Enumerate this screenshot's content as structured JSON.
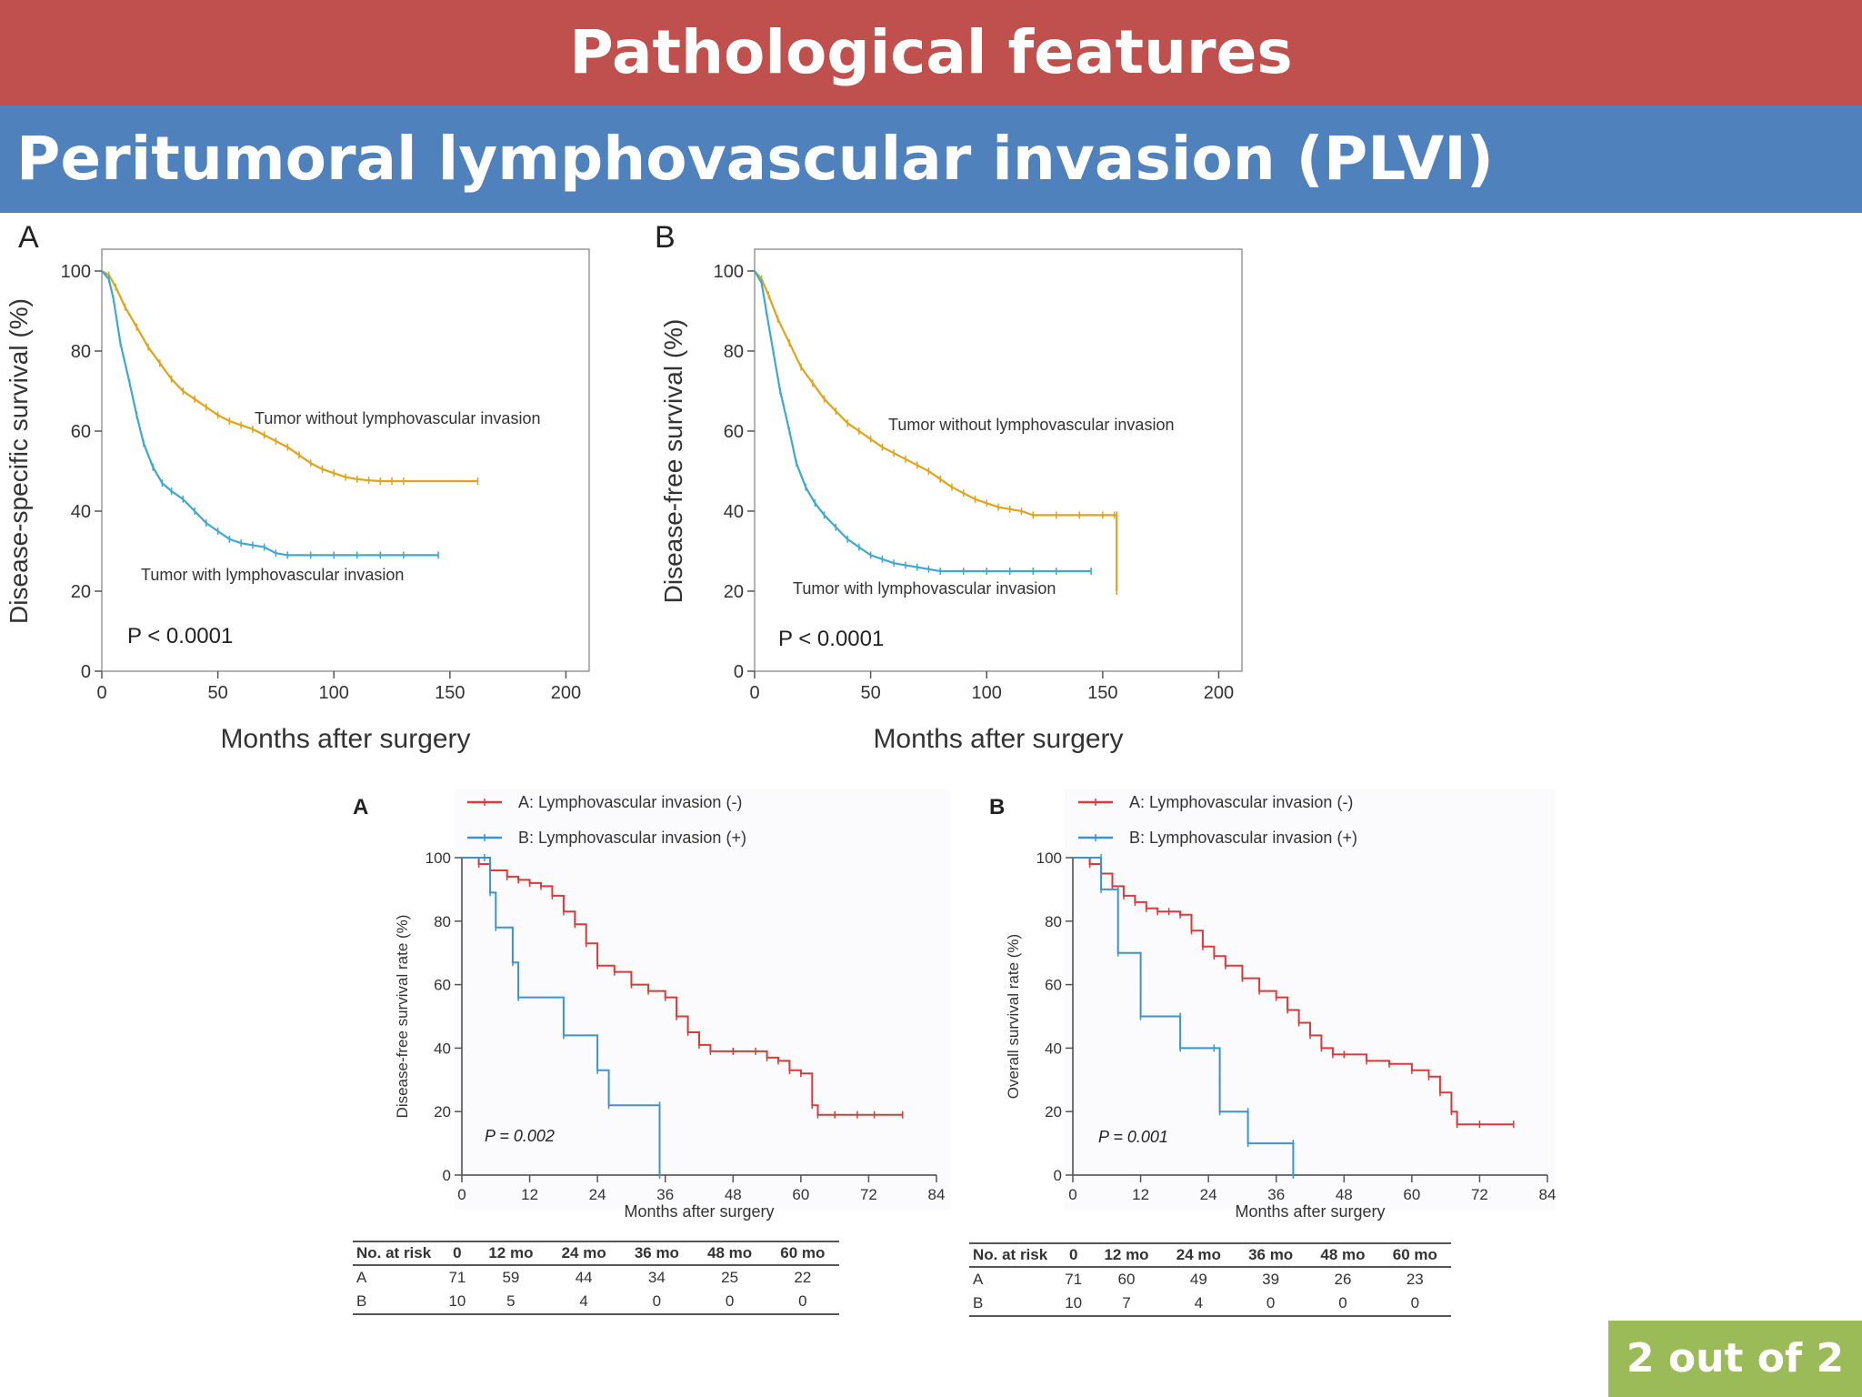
{
  "slide": {
    "title": "Pathological features",
    "subtitle": "Peritumoral lymphovascular invasion (PLVI)",
    "page_indicator": "2 out of  2"
  },
  "colors": {
    "header_red": "#c0504d",
    "header_blue": "#4f81bd",
    "badge_green": "#9bbb59",
    "km_orange": "#e0a419",
    "km_cyan": "#3fa8d0",
    "km_red": "#d93a3a",
    "km_blue": "#3c93cf"
  },
  "chart_data": [
    {
      "type": "line",
      "panel_label": "A",
      "xlabel": "Months after surgery",
      "ylabel": "Disease-specific survival (%)",
      "xlim": [
        0,
        210
      ],
      "ylim": [
        0,
        105
      ],
      "xticks": [
        0,
        50,
        100,
        150,
        200
      ],
      "yticks": [
        0,
        20,
        40,
        60,
        80,
        100
      ],
      "annotation": "P < 0.0001",
      "series": [
        {
          "name": "Tumor without lymphovascular invasion",
          "color": "#e0a419",
          "x": [
            0,
            3,
            6,
            10,
            15,
            20,
            25,
            30,
            35,
            40,
            45,
            50,
            55,
            60,
            65,
            70,
            75,
            80,
            85,
            90,
            95,
            100,
            105,
            110,
            115,
            120,
            125,
            130,
            162
          ],
          "y": [
            100,
            99,
            96,
            91,
            86,
            81,
            77,
            73,
            70,
            68,
            66,
            64,
            62.5,
            61.5,
            60.5,
            59,
            57.5,
            56,
            54,
            52,
            50.5,
            49.5,
            48.5,
            48,
            47.7,
            47.5,
            47.5,
            47.5,
            47.5
          ]
        },
        {
          "name": "Tumor with lymphovascular invasion",
          "color": "#3fa8d0",
          "x": [
            0,
            3,
            5,
            8,
            12,
            15,
            18,
            22,
            26,
            30,
            35,
            40,
            45,
            50,
            55,
            60,
            65,
            70,
            75,
            80,
            90,
            100,
            110,
            120,
            130,
            145
          ],
          "y": [
            100,
            98,
            93,
            82,
            72,
            64,
            57,
            51,
            47,
            45,
            43,
            40,
            37,
            35,
            33,
            32,
            31.5,
            31,
            29.5,
            29,
            29,
            29,
            29,
            29,
            29,
            29
          ]
        }
      ]
    },
    {
      "type": "line",
      "panel_label": "B",
      "xlabel": "Months after surgery",
      "ylabel": "Disease-free survival (%)",
      "xlim": [
        0,
        210
      ],
      "ylim": [
        0,
        105
      ],
      "xticks": [
        0,
        50,
        100,
        150,
        200
      ],
      "yticks": [
        0,
        20,
        40,
        60,
        80,
        100
      ],
      "annotation": "P < 0.0001",
      "series": [
        {
          "name": "Tumor without lymphovascular invasion",
          "color": "#e0a419",
          "x": [
            0,
            3,
            6,
            10,
            15,
            20,
            25,
            30,
            35,
            40,
            45,
            50,
            55,
            60,
            65,
            70,
            75,
            80,
            85,
            90,
            95,
            100,
            105,
            110,
            115,
            120,
            130,
            140,
            150,
            155,
            156,
            156
          ],
          "y": [
            100,
            98,
            94,
            88,
            82,
            76,
            72,
            68,
            65,
            62,
            60,
            58,
            56,
            54.5,
            53,
            51.5,
            50,
            48,
            46,
            44.5,
            43,
            42,
            41,
            40.5,
            40,
            39,
            39,
            39,
            39,
            39,
            39,
            20
          ]
        },
        {
          "name": "Tumor with lymphovascular invasion",
          "color": "#3fa8d0",
          "x": [
            0,
            3,
            5,
            8,
            11,
            15,
            18,
            22,
            26,
            30,
            35,
            40,
            45,
            50,
            55,
            60,
            65,
            70,
            75,
            80,
            90,
            100,
            110,
            120,
            130,
            145
          ],
          "y": [
            100,
            97,
            90,
            80,
            70,
            60,
            52,
            46,
            42,
            39,
            36,
            33,
            31,
            29,
            28,
            27,
            26.5,
            26,
            25.5,
            25,
            25,
            25,
            25,
            25,
            25,
            25
          ]
        }
      ]
    },
    {
      "type": "line",
      "panel_label": "A",
      "xlabel": "Months after surgery",
      "ylabel": "Disease-free survival rate (%)",
      "xlim": [
        0,
        84
      ],
      "ylim": [
        0,
        100
      ],
      "xticks": [
        0,
        12,
        24,
        36,
        48,
        60,
        72,
        84
      ],
      "yticks": [
        0,
        20,
        40,
        60,
        80,
        100
      ],
      "annotation": "P = 0.002",
      "series": [
        {
          "name": "A: Lymphovascular invasion (-)",
          "color": "#d93a3a",
          "x": [
            0,
            3,
            5,
            8,
            10,
            12,
            14,
            16,
            18,
            20,
            22,
            24,
            27,
            30,
            33,
            36,
            38,
            40,
            42,
            44,
            48,
            52,
            54,
            56,
            58,
            60,
            62,
            63,
            66,
            70,
            73,
            78
          ],
          "y": [
            100,
            98,
            96,
            94,
            93,
            92,
            91,
            88,
            83,
            79,
            73,
            66,
            64,
            60,
            58,
            56,
            50,
            45,
            41,
            39,
            39,
            39,
            37,
            36,
            33,
            32,
            22,
            19,
            19,
            19,
            19,
            19
          ]
        },
        {
          "name": "B: Lymphovascular invasion (+)",
          "color": "#3c93cf",
          "x": [
            0,
            4,
            5,
            6,
            9,
            10,
            18,
            24,
            26,
            35,
            35
          ],
          "y": [
            100,
            100,
            89,
            78,
            67,
            56,
            44,
            33,
            22,
            22,
            0
          ]
        }
      ],
      "risk_table": {
        "headers": [
          "No. at risk",
          "0",
          "12 mo",
          "24 mo",
          "36 mo",
          "48 mo",
          "60 mo"
        ],
        "rows": [
          [
            "A",
            "71",
            "59",
            "44",
            "34",
            "25",
            "22"
          ],
          [
            "B",
            "10",
            "5",
            "4",
            "0",
            "0",
            "0"
          ]
        ]
      }
    },
    {
      "type": "line",
      "panel_label": "B",
      "xlabel": "Months after surgery",
      "ylabel": "Overall survival rate (%)",
      "xlim": [
        0,
        84
      ],
      "ylim": [
        0,
        100
      ],
      "xticks": [
        0,
        12,
        24,
        36,
        48,
        60,
        72,
        84
      ],
      "yticks": [
        0,
        20,
        40,
        60,
        80,
        100
      ],
      "annotation": "P = 0.001",
      "series": [
        {
          "name": "A: Lymphovascular invasion (-)",
          "color": "#d93a3a",
          "x": [
            0,
            3,
            5,
            7,
            9,
            11,
            13,
            15,
            17,
            19,
            21,
            23,
            25,
            27,
            30,
            33,
            36,
            38,
            40,
            42,
            44,
            46,
            48,
            52,
            56,
            60,
            63,
            65,
            67,
            68,
            72,
            78
          ],
          "y": [
            100,
            98,
            95,
            91,
            88,
            86,
            84,
            83,
            83,
            82,
            77,
            72,
            69,
            66,
            62,
            58,
            56,
            52,
            48,
            44,
            40,
            38,
            38,
            36,
            35,
            33,
            31,
            26,
            20,
            16,
            16,
            16
          ]
        },
        {
          "name": "B: Lymphovascular invasion (+)",
          "color": "#3c93cf",
          "x": [
            0,
            5,
            5,
            8,
            8,
            12,
            12,
            19,
            19,
            25,
            26,
            26,
            31,
            31,
            39,
            39
          ],
          "y": [
            100,
            100,
            90,
            90,
            70,
            60,
            50,
            50,
            40,
            40,
            30,
            20,
            20,
            10,
            10,
            0
          ]
        }
      ],
      "risk_table": {
        "headers": [
          "No. at risk",
          "0",
          "12 mo",
          "24 mo",
          "36 mo",
          "48 mo",
          "60 mo"
        ],
        "rows": [
          [
            "A",
            "71",
            "60",
            "49",
            "39",
            "26",
            "23"
          ],
          [
            "B",
            "10",
            "7",
            "4",
            "0",
            "0",
            "0"
          ]
        ]
      }
    }
  ]
}
